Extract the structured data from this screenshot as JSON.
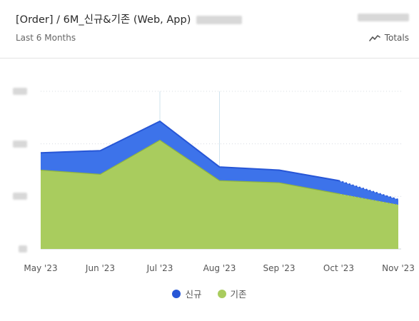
{
  "header": {
    "title": "[Order] / 6M_신규&기존 (Web, App)",
    "subtitle": "Last 6 Months",
    "totals_label": "Totals"
  },
  "colors": {
    "new": "#3d73ea",
    "new_line": "#2756d6",
    "existing": "#a9cc5e",
    "grid": "#d7dce2",
    "crosshair": "#cfe3ee"
  },
  "icons": {
    "totals": "trend-line-icon"
  },
  "chart_data": {
    "type": "area",
    "stacked": true,
    "categories": [
      "May '23",
      "Jun '23",
      "Jul '23",
      "Aug '23",
      "Sep '23",
      "Oct '23",
      "Nov '23"
    ],
    "series": [
      {
        "name": "기존",
        "values": [
          150,
          142,
          207,
          130,
          126,
          105,
          84
        ]
      },
      {
        "name": "신규",
        "values": [
          33,
          45,
          36,
          26,
          24,
          25,
          10
        ]
      }
    ],
    "ylim": [
      0,
      300
    ],
    "y_ticks_visible": false,
    "grid": "horizontal-dotted",
    "last_segment_dashed": true,
    "legend_position": "bottom"
  }
}
